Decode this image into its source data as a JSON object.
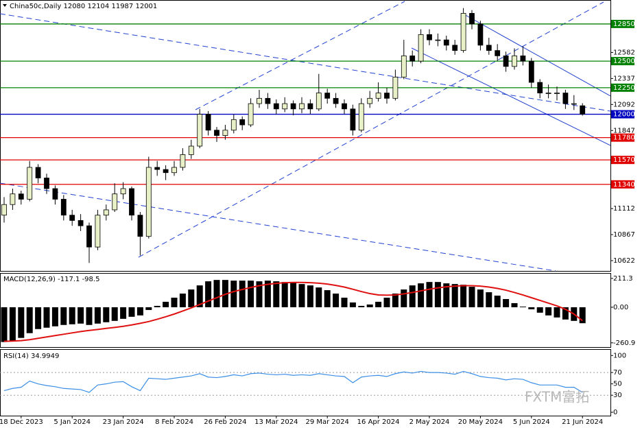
{
  "chart_data": [
    {
      "type": "candlestick",
      "title": "China50c,Daily",
      "categories": [
        null,
        null,
        "18 Dec 2023",
        null,
        null,
        null,
        null,
        null,
        "5 Jan 2024",
        null,
        null,
        null,
        null,
        null,
        "23 Jan 2024",
        null,
        null,
        null,
        null,
        null,
        "8 Feb 2024",
        null,
        null,
        null,
        null,
        null,
        "26 Feb 2024",
        null,
        null,
        null,
        null,
        null,
        "13 Mar 2024",
        null,
        null,
        null,
        null,
        null,
        "29 Mar 2024",
        null,
        null,
        null,
        null,
        null,
        "16 Apr 2024",
        null,
        null,
        null,
        null,
        null,
        "2 May 2024",
        null,
        null,
        null,
        null,
        null,
        "20 May 2024",
        null,
        null,
        null,
        null,
        null,
        "5 Jun 2024",
        null,
        null,
        null,
        null,
        null,
        "21 Jun 2024"
      ],
      "ohlc": [
        [
          11050,
          11220,
          10980,
          11150
        ],
        [
          11150,
          11300,
          11100,
          11250
        ],
        [
          11250,
          11280,
          11150,
          11200
        ],
        [
          11200,
          11560,
          11180,
          11500
        ],
        [
          11500,
          11530,
          11350,
          11400
        ],
        [
          11400,
          11440,
          11250,
          11300
        ],
        [
          11300,
          11330,
          11150,
          11200
        ],
        [
          11200,
          11240,
          11000,
          11050
        ],
        [
          11050,
          11100,
          10950,
          11000
        ],
        [
          11000,
          11060,
          10900,
          10950
        ],
        [
          10950,
          10980,
          10600,
          10750
        ],
        [
          10750,
          11100,
          10720,
          11050
        ],
        [
          11050,
          11150,
          11000,
          11100
        ],
        [
          11100,
          11350,
          11080,
          11250
        ],
        [
          11250,
          11360,
          11200,
          11300
        ],
        [
          11300,
          11320,
          11000,
          11050
        ],
        [
          11050,
          11080,
          10670,
          10850
        ],
        [
          10850,
          11600,
          10830,
          11500
        ],
        [
          11500,
          11560,
          11420,
          11480
        ],
        [
          11480,
          11520,
          11380,
          11450
        ],
        [
          11450,
          11560,
          11420,
          11500
        ],
        [
          11500,
          11680,
          11470,
          11620
        ],
        [
          11620,
          11760,
          11580,
          11700
        ],
        [
          11700,
          12050,
          11680,
          12000
        ],
        [
          12000,
          12030,
          11800,
          11850
        ],
        [
          11850,
          11880,
          11740,
          11800
        ],
        [
          11800,
          11900,
          11760,
          11850
        ],
        [
          11850,
          12000,
          11820,
          11950
        ],
        [
          11950,
          11980,
          11850,
          11900
        ],
        [
          11900,
          12150,
          11880,
          12100
        ],
        [
          12100,
          12230,
          12060,
          12150
        ],
        [
          12150,
          12200,
          12050,
          12100
        ],
        [
          12100,
          12140,
          12000,
          12050
        ],
        [
          12050,
          12160,
          12020,
          12100
        ],
        [
          12100,
          12130,
          11990,
          12050
        ],
        [
          12050,
          12160,
          12010,
          12100
        ],
        [
          12100,
          12140,
          12000,
          12050
        ],
        [
          12050,
          12380,
          12030,
          12200
        ],
        [
          12200,
          12240,
          12100,
          12150
        ],
        [
          12150,
          12200,
          12060,
          12100
        ],
        [
          12100,
          12140,
          12000,
          12050
        ],
        [
          12050,
          12090,
          11800,
          11850
        ],
        [
          11850,
          12150,
          11830,
          12100
        ],
        [
          12100,
          12220,
          12060,
          12150
        ],
        [
          12150,
          12300,
          12120,
          12200
        ],
        [
          12200,
          12250,
          12100,
          12150
        ],
        [
          12150,
          12420,
          12130,
          12350
        ],
        [
          12350,
          12700,
          12330,
          12550
        ],
        [
          12550,
          12600,
          12450,
          12500
        ],
        [
          12500,
          12800,
          12480,
          12750
        ],
        [
          12750,
          12800,
          12650,
          12700
        ],
        [
          12700,
          12760,
          12640,
          12700
        ],
        [
          12700,
          12740,
          12600,
          12650
        ],
        [
          12650,
          12700,
          12560,
          12600
        ],
        [
          12600,
          13000,
          12580,
          12950
        ],
        [
          12950,
          12980,
          12800,
          12850
        ],
        [
          12850,
          12880,
          12600,
          12650
        ],
        [
          12650,
          12720,
          12560,
          12600
        ],
        [
          12600,
          12660,
          12500,
          12550
        ],
        [
          12550,
          12590,
          12400,
          12450
        ],
        [
          12450,
          12620,
          12420,
          12550
        ],
        [
          12550,
          12640,
          12460,
          12500
        ],
        [
          12500,
          12530,
          12250,
          12300
        ],
        [
          12300,
          12330,
          12150,
          12200
        ],
        [
          12200,
          12280,
          12150,
          12200
        ],
        [
          12200,
          12260,
          12130,
          12200
        ],
        [
          12200,
          12230,
          12050,
          12100
        ],
        [
          12100,
          12180,
          12040,
          12100
        ],
        [
          12080,
          12104,
          11987,
          12001
        ]
      ],
      "up_color": "#e8f0c8",
      "down_color": "#000000",
      "ylim": [
        10525,
        13069
      ],
      "yticks": [
        12582,
        12337,
        12092,
        11847,
        11112,
        10867,
        10622
      ],
      "hlines": [
        {
          "value": 12850,
          "color": "#008000"
        },
        {
          "value": 12500,
          "color": "#008000"
        },
        {
          "value": 12250,
          "color": "#008000"
        },
        {
          "value": 12000,
          "color": "#0000c0"
        },
        {
          "value": 11780,
          "color": "#e00000"
        },
        {
          "value": 11570,
          "color": "#e00000"
        },
        {
          "value": 11340,
          "color": "#e00000"
        }
      ]
    },
    {
      "type": "macd",
      "title": "MACD(12,26,9)",
      "values": [
        -255,
        -245,
        -225,
        -190,
        -160,
        -150,
        -140,
        -130,
        -125,
        -120,
        -130,
        -120,
        -110,
        -100,
        -85,
        -70,
        -60,
        -20,
        10,
        40,
        70,
        100,
        130,
        160,
        190,
        200,
        200,
        195,
        195,
        195,
        190,
        195,
        190,
        185,
        180,
        170,
        160,
        145,
        125,
        100,
        70,
        35,
        10,
        20,
        40,
        70,
        100,
        130,
        160,
        175,
        185,
        185,
        175,
        170,
        165,
        150,
        130,
        110,
        85,
        60,
        30,
        5,
        -15,
        -40,
        -60,
        -75,
        -90,
        -100,
        -117.1
      ],
      "color": "#000000",
      "signal": [
        -250,
        -248,
        -245,
        -238,
        -228,
        -218,
        -208,
        -198,
        -188,
        -178,
        -170,
        -163,
        -155,
        -148,
        -140,
        -130,
        -118,
        -105,
        -88,
        -70,
        -50,
        -28,
        -5,
        20,
        45,
        70,
        95,
        115,
        130,
        145,
        158,
        168,
        175,
        180,
        182,
        182,
        180,
        176,
        170,
        160,
        148,
        132,
        115,
        100,
        90,
        88,
        90,
        98,
        108,
        120,
        132,
        142,
        150,
        155,
        158,
        158,
        155,
        148,
        138,
        125,
        108,
        90,
        70,
        50,
        30,
        10,
        -15,
        -50,
        -98.5
      ],
      "signal_color": "#e01010",
      "ylim": [
        -292,
        246
      ],
      "yticks": [
        211.3,
        {
          "value": 0,
          "label": "0.00"
        },
        -260.9
      ]
    },
    {
      "type": "rsi",
      "title": "RSI(14)",
      "values": [
        38,
        42,
        44,
        55,
        50,
        47,
        45,
        42,
        41,
        40,
        35,
        48,
        50,
        53,
        54,
        45,
        38,
        60,
        59,
        58,
        60,
        62,
        64,
        68,
        62,
        61,
        63,
        66,
        64,
        68,
        69,
        67,
        66,
        67,
        65,
        66,
        65,
        68,
        66,
        64,
        63,
        52,
        62,
        64,
        65,
        63,
        68,
        71,
        69,
        72,
        70,
        70,
        69,
        67,
        72,
        68,
        63,
        61,
        60,
        57,
        59,
        58,
        52,
        48,
        48,
        48,
        44,
        44,
        34.9949
      ],
      "color": "#3a8ee6",
      "levels": [
        70,
        30
      ],
      "ylim": [
        -6,
        110
      ],
      "yticks": [
        100,
        70,
        50,
        30,
        0
      ],
      "watermark": "FXTM富拓"
    }
  ]
}
